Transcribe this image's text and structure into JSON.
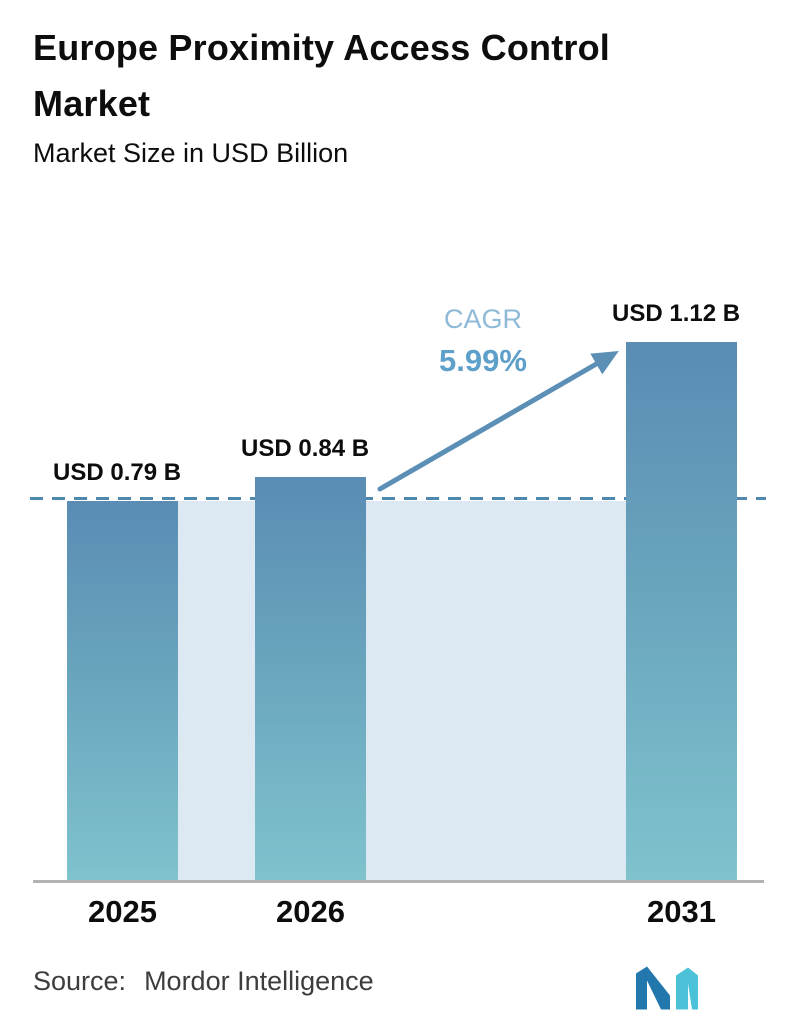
{
  "header": {
    "title": "Europe Proximity Access Control Market",
    "subtitle": "Market Size in USD Billion"
  },
  "chart_data": {
    "type": "bar",
    "title": "Europe Proximity Access Control Market",
    "subtitle": "Market Size in USD Billion",
    "categories": [
      "2025",
      "2026",
      "2031"
    ],
    "values": [
      0.79,
      0.84,
      1.12
    ],
    "value_labels": [
      "USD 0.79 B",
      "USD 0.84 B",
      "USD 1.12 B"
    ],
    "unit": "USD Billion",
    "ylim": [
      0,
      1.25
    ],
    "grid": false,
    "legend": "none",
    "annotations": {
      "cagr_label": "CAGR",
      "cagr_value": "5.99%",
      "reference_line_value": 0.79,
      "reference_line_style": "dashed",
      "arrow": "from top of 2026 bar to top of 2031 bar"
    },
    "colors": {
      "bar_top": "#5a8cb4",
      "bar_bottom": "#7fc3cd",
      "backdrop": "#dde9f2",
      "reference_line": "#4e88ad",
      "arrow": "#5b8fb5",
      "cagr_label_color": "#8fbad7",
      "cagr_value_color": "#5fa0ca",
      "baseline": "#b3b3b3",
      "text": "#0d0d0d",
      "source_text": "#3d3d3d",
      "logo_blue": "#2278ad",
      "logo_teal": "#4cc2d8"
    }
  },
  "footer": {
    "source_label": "Source:",
    "source_value": "Mordor Intelligence",
    "logo_name": "mordor-intelligence-logo"
  }
}
